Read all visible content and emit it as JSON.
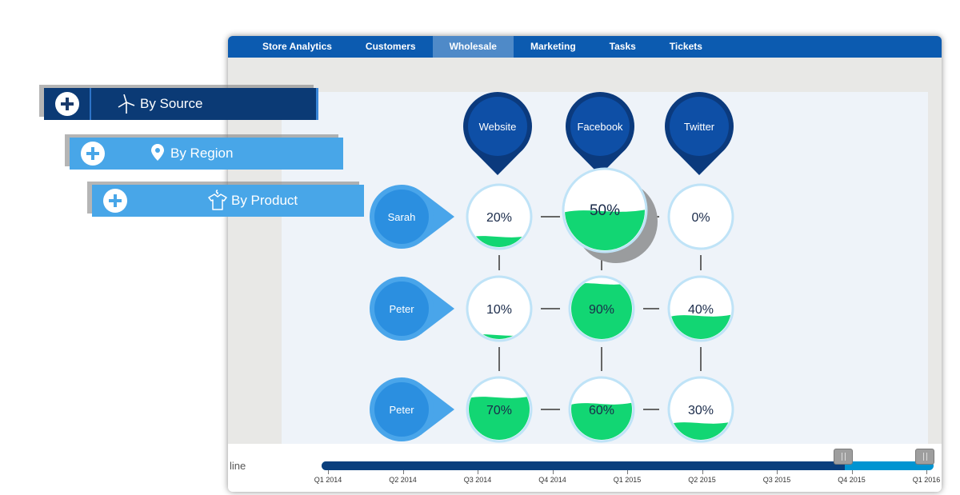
{
  "navbar": {
    "tabs": [
      {
        "label": "Store Analytics",
        "active": false
      },
      {
        "label": "Customers",
        "active": false
      },
      {
        "label": "Wholesale",
        "active": true
      },
      {
        "label": "Marketing",
        "active": false
      },
      {
        "label": "Tasks",
        "active": false
      },
      {
        "label": "Tickets",
        "active": false
      }
    ]
  },
  "side_menu": {
    "by_source": {
      "label": "By Source",
      "icon": "wind-turbine-icon"
    },
    "by_region": {
      "label": "By Region",
      "icon": "location-pin-icon"
    },
    "by_product": {
      "label": "By Product",
      "icon": "shirt-hanger-icon"
    }
  },
  "sources": [
    "Website",
    "Facebook",
    "Twitter"
  ],
  "people": [
    "Sarah",
    "Peter",
    "Peter"
  ],
  "cells": [
    [
      20,
      50,
      0
    ],
    [
      10,
      90,
      40
    ],
    [
      70,
      60,
      30
    ]
  ],
  "highlighted_cell": {
    "row": 0,
    "col": 1
  },
  "timeline": {
    "label": "line",
    "ticks": [
      "Q1 2014",
      "Q2 2014",
      "Q3 2014",
      "Q4 2014",
      "Q1 2015",
      "Q2 2015",
      "Q3 2015",
      "Q4 2015",
      "Q1 2016"
    ],
    "range_start_fraction": 0.0,
    "selected_end_fraction": 0.855
  },
  "colors": {
    "nav_bg": "#0c5bb0",
    "dark_blue": "#0b3a75",
    "light_blue": "#48a6e8",
    "fill_green": "#12d673",
    "person_blue": "#2b8fe0",
    "pin_blue": "#0b3a7d"
  }
}
